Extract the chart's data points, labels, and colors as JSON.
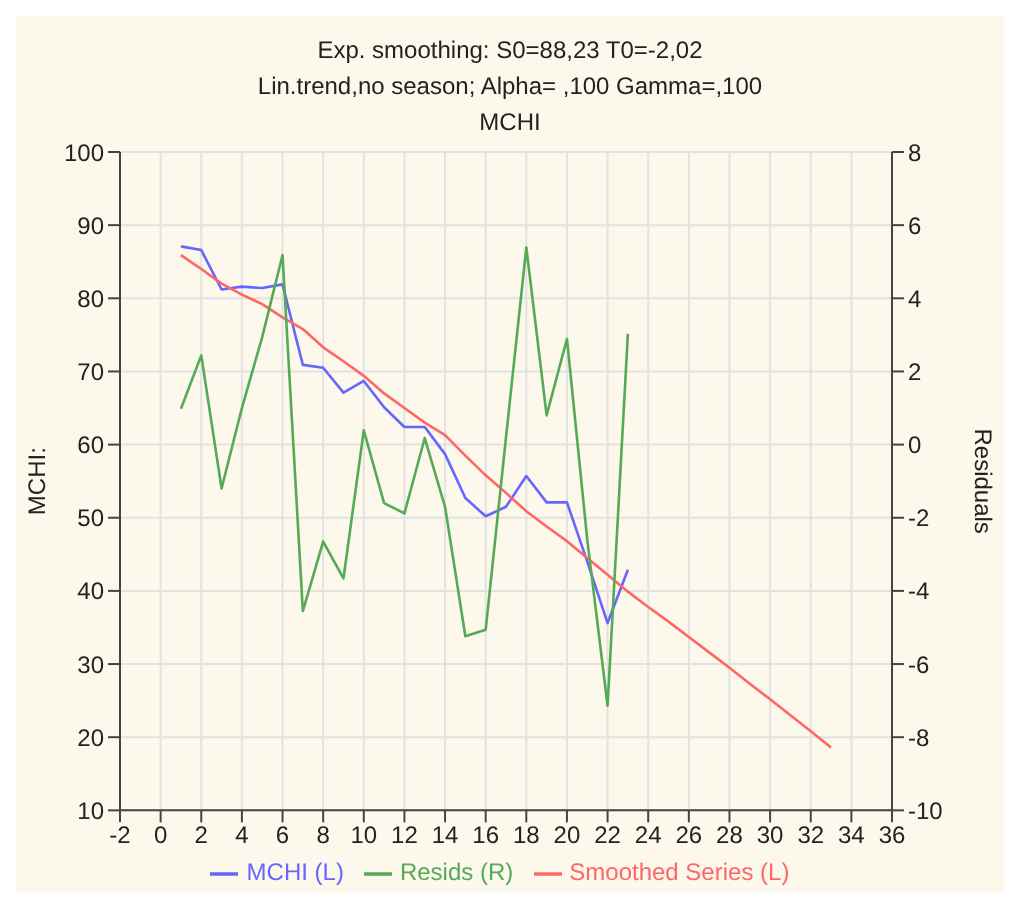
{
  "chart_data": {
    "type": "line",
    "title": "Exp. smoothing:  S0=88,23 T0=-2,02",
    "subtitle": "Lin.trend,no season; Alpha=  ,100 Gamma=,100",
    "annotations": [
      "MCHI"
    ],
    "ylabel": "MCHI:",
    "y2label": "Residuals",
    "x": [
      1,
      2,
      3,
      4,
      5,
      6,
      7,
      8,
      9,
      10,
      11,
      12,
      13,
      14,
      15,
      16,
      17,
      18,
      19,
      20,
      21,
      22,
      23,
      24,
      25,
      26,
      27,
      28,
      29,
      30,
      31,
      32,
      33
    ],
    "series": [
      {
        "name": "MCHI (L)",
        "color": "#6666ff",
        "values": [
          87.1,
          86.6,
          81.2,
          81.6,
          81.4,
          81.9,
          70.9,
          70.5,
          67.1,
          68.7,
          65.1,
          62.4,
          62.4,
          58.7,
          52.7,
          50.2,
          51.5,
          55.7,
          52.1,
          52.1,
          44,
          35.6,
          42.9,
          null,
          null,
          null,
          null,
          null,
          null,
          null,
          null,
          null,
          null
        ]
      },
      {
        "name": "Smoothed Series (L)",
        "color": "#ff6666",
        "values": [
          85.9,
          84,
          82,
          80.5,
          79.2,
          77.4,
          75.8,
          73.3,
          71.4,
          69.4,
          67,
          65,
          63,
          61.3,
          58.5,
          55.8,
          53.4,
          50.9,
          48.8,
          46.8,
          44.5,
          42.2,
          39.9,
          37.8,
          35.8,
          33.7,
          31.6,
          29.5,
          27.3,
          25.2,
          23,
          20.8,
          18.6
        ]
      },
      {
        "name": "Resids (R)",
        "color": "#55aa55",
        "axis": "y2",
        "values": [
          0.98,
          2.44,
          -1.2,
          1.0,
          2.94,
          5.18,
          -4.55,
          -2.65,
          -3.66,
          0.39,
          -1.6,
          -1.88,
          0.18,
          -1.7,
          -5.24,
          -5.06,
          0.2,
          5.39,
          0.8,
          2.89,
          -2.6,
          -7.14,
          3.03,
          null,
          null,
          null,
          null,
          null,
          null,
          null,
          null,
          null,
          null
        ]
      }
    ],
    "xlim": [
      -2,
      36
    ],
    "xticks": [
      -2,
      0,
      2,
      4,
      6,
      8,
      10,
      12,
      14,
      16,
      18,
      20,
      22,
      24,
      26,
      28,
      30,
      32,
      34,
      36
    ],
    "ylim": [
      10,
      100
    ],
    "yticks": [
      10,
      20,
      30,
      40,
      50,
      60,
      70,
      80,
      90,
      100
    ],
    "y2lim": [
      -10,
      8
    ],
    "y2ticks": [
      -10,
      -8,
      -6,
      -4,
      -2,
      0,
      2,
      4,
      6,
      8
    ],
    "grid": true,
    "legend": "bottom",
    "marker": "none",
    "line_style": "solid"
  }
}
